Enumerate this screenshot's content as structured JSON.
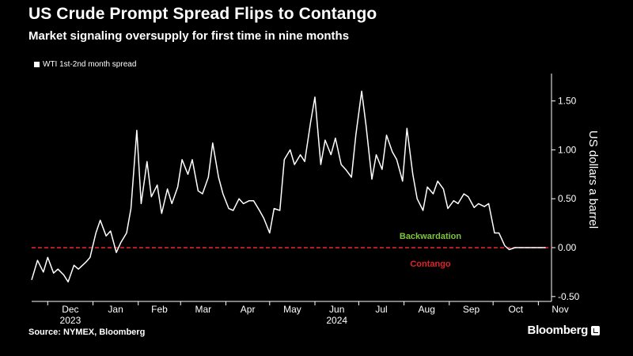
{
  "title": "US Crude Prompt Spread Flips to Contango",
  "subtitle": "Market signaling oversupply for first time in nine months",
  "legend": {
    "label": "WTI 1st-2nd month spread"
  },
  "source": "Source: NYMEX, Bloomberg",
  "brand": "Bloomberg",
  "colors": {
    "background": "#000000",
    "series": "#ffffff",
    "zero_line": "#e0232b",
    "backwardation": "#7fc241",
    "contango": "#e0232b",
    "axis": "#ffffff",
    "grid": "#6a6a6a"
  },
  "chart_data": {
    "type": "line",
    "ylabel": "US dollars a barrel",
    "ylim": [
      -0.55,
      1.78
    ],
    "y_ticks": [
      -0.5,
      0.0,
      0.5,
      1.0,
      1.5
    ],
    "y_tick_labels": [
      "-0.50",
      "0.00",
      "0.50",
      "1.00",
      "1.50"
    ],
    "x_months": [
      "Dec",
      "Jan",
      "Feb",
      "Mar",
      "Apr",
      "May",
      "Jun",
      "Jul",
      "Aug",
      "Sep",
      "Oct",
      "Nov"
    ],
    "x_years": [
      {
        "label": "2023",
        "under": "Dec"
      },
      {
        "label": "2024",
        "under": "Jun"
      }
    ],
    "annotations": [
      {
        "text": "Backwardation",
        "y": 0.12
      },
      {
        "text": "Contango",
        "y": -0.16
      }
    ],
    "reference_line": 0.0,
    "series": [
      {
        "name": "WTI 1st-2nd month spread",
        "x": [
          "2023-11-20",
          "2023-11-24",
          "2023-11-28",
          "2023-12-01",
          "2023-12-05",
          "2023-12-08",
          "2023-12-12",
          "2023-12-15",
          "2023-12-19",
          "2023-12-22",
          "2023-12-27",
          "2023-12-30",
          "2024-01-03",
          "2024-01-06",
          "2024-01-10",
          "2024-01-13",
          "2024-01-17",
          "2024-01-20",
          "2024-01-24",
          "2024-01-27",
          "2024-01-31",
          "2024-02-03",
          "2024-02-07",
          "2024-02-10",
          "2024-02-14",
          "2024-02-17",
          "2024-02-21",
          "2024-02-24",
          "2024-02-28",
          "2024-03-02",
          "2024-03-06",
          "2024-03-09",
          "2024-03-13",
          "2024-03-16",
          "2024-03-20",
          "2024-03-23",
          "2024-03-27",
          "2024-03-30",
          "2024-04-03",
          "2024-04-06",
          "2024-04-10",
          "2024-04-13",
          "2024-04-17",
          "2024-04-20",
          "2024-04-24",
          "2024-04-27",
          "2024-05-01",
          "2024-05-04",
          "2024-05-08",
          "2024-05-11",
          "2024-05-15",
          "2024-05-18",
          "2024-05-22",
          "2024-05-25",
          "2024-05-29",
          "2024-06-01",
          "2024-06-05",
          "2024-06-08",
          "2024-06-12",
          "2024-06-15",
          "2024-06-19",
          "2024-06-22",
          "2024-06-26",
          "2024-06-29",
          "2024-07-03",
          "2024-07-06",
          "2024-07-10",
          "2024-07-13",
          "2024-07-17",
          "2024-07-20",
          "2024-07-24",
          "2024-07-27",
          "2024-07-31",
          "2024-08-03",
          "2024-08-07",
          "2024-08-10",
          "2024-08-14",
          "2024-08-17",
          "2024-08-21",
          "2024-08-24",
          "2024-08-28",
          "2024-08-31",
          "2024-09-04",
          "2024-09-07",
          "2024-09-11",
          "2024-09-14",
          "2024-09-18",
          "2024-09-21",
          "2024-09-25",
          "2024-09-28",
          "2024-10-02",
          "2024-10-05",
          "2024-10-09",
          "2024-10-12",
          "2024-10-16",
          "2024-10-19",
          "2024-10-23",
          "2024-10-26",
          "2024-10-30",
          "2024-11-02",
          "2024-11-06"
        ],
        "values": [
          -0.33,
          -0.13,
          -0.25,
          -0.1,
          -0.26,
          -0.22,
          -0.28,
          -0.35,
          -0.18,
          -0.22,
          -0.15,
          -0.1,
          0.15,
          0.28,
          0.12,
          0.17,
          -0.05,
          0.05,
          0.15,
          0.4,
          1.2,
          0.45,
          0.88,
          0.52,
          0.64,
          0.35,
          0.6,
          0.45,
          0.62,
          0.9,
          0.75,
          0.9,
          0.58,
          0.55,
          0.72,
          1.07,
          0.72,
          0.55,
          0.4,
          0.38,
          0.5,
          0.45,
          0.48,
          0.48,
          0.38,
          0.3,
          0.15,
          0.4,
          0.38,
          0.9,
          1.0,
          0.85,
          0.95,
          0.88,
          1.28,
          1.54,
          0.85,
          1.1,
          0.95,
          1.12,
          0.85,
          0.8,
          0.72,
          1.15,
          1.6,
          1.25,
          0.7,
          0.95,
          0.8,
          1.15,
          0.98,
          0.9,
          0.68,
          1.22,
          0.75,
          0.5,
          0.38,
          0.62,
          0.55,
          0.68,
          0.6,
          0.4,
          0.48,
          0.45,
          0.55,
          0.52,
          0.41,
          0.45,
          0.42,
          0.45,
          0.15,
          0.15,
          0.02,
          -0.02,
          0.0,
          0.0,
          0.0,
          0.0,
          0.0,
          0.0,
          0.0
        ]
      }
    ]
  }
}
